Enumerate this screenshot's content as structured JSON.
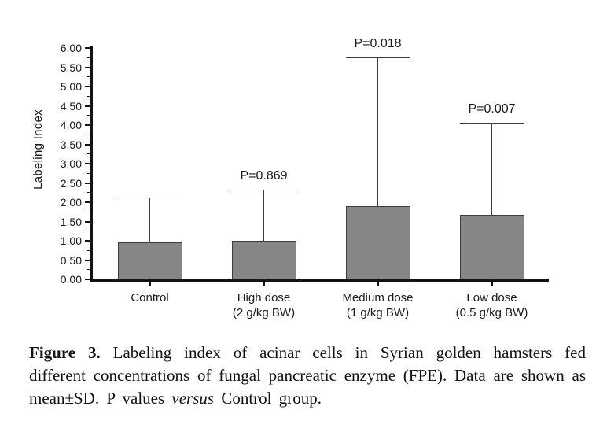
{
  "chart_data": {
    "type": "bar",
    "title": "",
    "xlabel": "",
    "ylabel": "Labeling Index",
    "ylim": [
      0,
      6
    ],
    "ytick_step": 0.5,
    "yminor_step": 0.25,
    "ytick_decimals": 2,
    "grid": false,
    "legend": null,
    "bar_color": "#868686",
    "bar_border_color": "#3d3d3d",
    "categories": [
      "Control",
      "High dose",
      "Medium dose",
      "Low dose"
    ],
    "category_sublabels": [
      "",
      "(2 g/kg BW)",
      "(1 g/kg BW)",
      "(0.5 g/kg BW)"
    ],
    "values": [
      0.95,
      1.0,
      1.9,
      1.68
    ],
    "sd": [
      1.17,
      1.32,
      3.85,
      2.38
    ],
    "error_bar_tops": [
      2.12,
      2.32,
      5.75,
      4.06
    ],
    "p_value_labels": [
      "",
      "P=0.869",
      "P=0.018",
      "P=0.007"
    ]
  },
  "caption": {
    "bold": "Figure 3.",
    "part2": " Labeling index of acinar cells in Syrian golden hamsters fed different concentrations of fungal pancreatic enzyme (FPE). Data are shown as mean±SD. P values ",
    "italic": "versus",
    "part4": " Control group."
  }
}
